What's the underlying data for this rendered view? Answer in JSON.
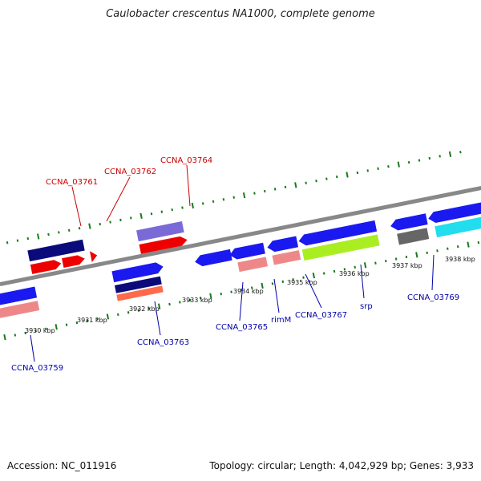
{
  "title": "Caulobacter crescentus NA1000, complete genome",
  "accession": "Accession: NC_011916",
  "topology": "Topology: circular; Length: 4,042,929 bp; Genes: 3,933",
  "colors": {
    "backbone": "#888888",
    "tick": "#1a7a1a",
    "label_top": "#cc0000",
    "label_bottom": "#0000aa"
  },
  "tick_labels": [
    "3930 kbp",
    "3931 kbp",
    "3932 kbp",
    "3933 kbp",
    "3934 kbp",
    "3935 kbp",
    "3936 kbp",
    "3937 kbp",
    "3938 kbp"
  ],
  "gene_labels_top": [
    "CCNA_03761",
    "CCNA_03762",
    "CCNA_03764"
  ],
  "gene_labels_bottom": [
    "CCNA_03759",
    "CCNA_03763",
    "CCNA_03765",
    "rimM",
    "CCNA_03767",
    "srp",
    "CCNA_03769"
  ]
}
